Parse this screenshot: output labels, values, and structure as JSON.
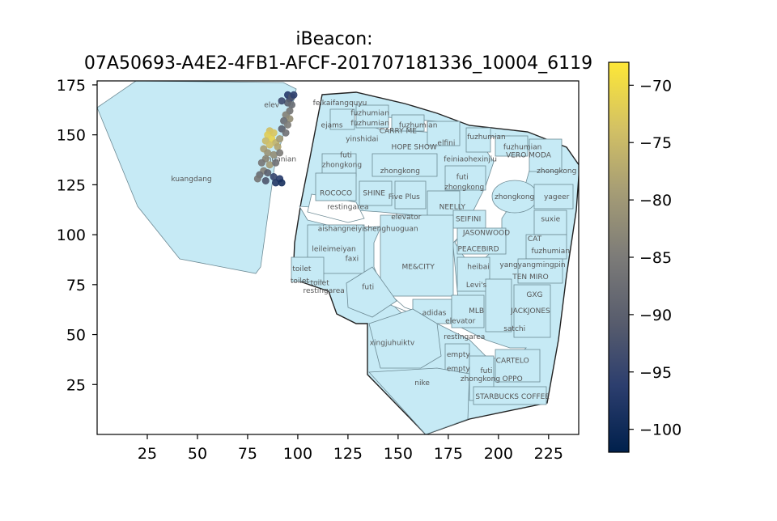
{
  "chart_data": {
    "type": "scatter",
    "title_lines": [
      "iBeacon:",
      "07A50693-A4E2-4FB1-AFCF-201707181336_10004_6119"
    ],
    "xlabel": "",
    "ylabel": "",
    "xlim": [
      0,
      240
    ],
    "ylim": [
      0,
      177
    ],
    "x_ticks": [
      "25",
      "50",
      "75",
      "100",
      "125",
      "150",
      "175",
      "200",
      "225"
    ],
    "y_ticks": [
      "25",
      "50",
      "75",
      "100",
      "125",
      "150",
      "175"
    ],
    "colorbar": {
      "cmap": "cividis",
      "range": [
        -102,
        -68
      ],
      "ticks": [
        "−70",
        "−75",
        "−80",
        "−85",
        "−90",
        "−95",
        "−100"
      ],
      "colors": [
        "#00204c",
        "#2c3e6e",
        "#575c6d",
        "#7c7b78",
        "#a69d75",
        "#d3c164",
        "#fde737"
      ]
    },
    "shop_labels": [
      {
        "text": "kuangdang",
        "x": 47,
        "y": 128
      },
      {
        "text": "elev",
        "x": 87,
        "y": 165
      },
      {
        "text": "zhuanian",
        "x": 91,
        "y": 138
      },
      {
        "text": "feikaifangquyu",
        "x": 121,
        "y": 166
      },
      {
        "text": "fuzhumian",
        "x": 136,
        "y": 161
      },
      {
        "text": "ejams",
        "x": 117,
        "y": 155
      },
      {
        "text": "fuzhumian",
        "x": 136,
        "y": 156
      },
      {
        "text": "CARRY ME",
        "x": 150,
        "y": 152
      },
      {
        "text": "fuzhumian",
        "x": 160,
        "y": 155
      },
      {
        "text": "yinshidai",
        "x": 132,
        "y": 148
      },
      {
        "text": "HOPE SHOW",
        "x": 158,
        "y": 144
      },
      {
        "text": "elfini",
        "x": 174,
        "y": 146
      },
      {
        "text": "fuzhumian",
        "x": 194,
        "y": 149
      },
      {
        "text": "fuzhumian",
        "x": 212,
        "y": 144
      },
      {
        "text": "VERO MODA",
        "x": 215,
        "y": 140
      },
      {
        "text": "feiniaohexinjiu",
        "x": 186,
        "y": 138
      },
      {
        "text": "futi",
        "x": 124,
        "y": 140
      },
      {
        "text": "zhongkong",
        "x": 122,
        "y": 135
      },
      {
        "text": "zhongkong",
        "x": 151,
        "y": 132
      },
      {
        "text": "zhongkong",
        "x": 229,
        "y": 132
      },
      {
        "text": "futi",
        "x": 182,
        "y": 129
      },
      {
        "text": "zhongkong",
        "x": 183,
        "y": 124
      },
      {
        "text": "ROCOCO",
        "x": 119,
        "y": 121
      },
      {
        "text": "SHINE",
        "x": 138,
        "y": 121
      },
      {
        "text": "Five Plus",
        "x": 153,
        "y": 119
      },
      {
        "text": "zhongkong",
        "x": 208,
        "y": 119
      },
      {
        "text": "yageer",
        "x": 229,
        "y": 119
      },
      {
        "text": "restingarea",
        "x": 125,
        "y": 114
      },
      {
        "text": "NEELLY",
        "x": 177,
        "y": 114
      },
      {
        "text": "elevator",
        "x": 154,
        "y": 109
      },
      {
        "text": "SEIFINI",
        "x": 185,
        "y": 108
      },
      {
        "text": "suxie",
        "x": 226,
        "y": 108
      },
      {
        "text": "aishangneiyishenghuoguan",
        "x": 135,
        "y": 103
      },
      {
        "text": "JASONWOOD",
        "x": 194,
        "y": 101
      },
      {
        "text": "CAT",
        "x": 218,
        "y": 98
      },
      {
        "text": "leileimeiyan",
        "x": 118,
        "y": 93
      },
      {
        "text": "PEACEBIRD",
        "x": 190,
        "y": 93
      },
      {
        "text": "fuzhumian",
        "x": 226,
        "y": 92
      },
      {
        "text": "faxi",
        "x": 127,
        "y": 88
      },
      {
        "text": "ME&CITY",
        "x": 160,
        "y": 84
      },
      {
        "text": "heibai",
        "x": 190,
        "y": 84
      },
      {
        "text": "yangyangmingpin",
        "x": 217,
        "y": 85
      },
      {
        "text": "toilet",
        "x": 102,
        "y": 83
      },
      {
        "text": "TEN MIRO",
        "x": 216,
        "y": 79
      },
      {
        "text": "toilet",
        "x": 101,
        "y": 77
      },
      {
        "text": "toilet",
        "x": 111,
        "y": 76
      },
      {
        "text": "Levi's",
        "x": 189,
        "y": 75
      },
      {
        "text": "futi",
        "x": 135,
        "y": 74
      },
      {
        "text": "restingarea",
        "x": 113,
        "y": 72
      },
      {
        "text": "GXG",
        "x": 218,
        "y": 70
      },
      {
        "text": "MLB",
        "x": 189,
        "y": 62
      },
      {
        "text": "JACKJONES",
        "x": 216,
        "y": 62
      },
      {
        "text": "adidas",
        "x": 168,
        "y": 61
      },
      {
        "text": "elevator",
        "x": 181,
        "y": 57
      },
      {
        "text": "satchi",
        "x": 208,
        "y": 53
      },
      {
        "text": "restingarea",
        "x": 183,
        "y": 49
      },
      {
        "text": "xingjuhuiktv",
        "x": 147,
        "y": 46
      },
      {
        "text": "empty",
        "x": 180,
        "y": 40
      },
      {
        "text": "CARTELO",
        "x": 207,
        "y": 37
      },
      {
        "text": "empty",
        "x": 180,
        "y": 33
      },
      {
        "text": "futi",
        "x": 194,
        "y": 32
      },
      {
        "text": "zhongkong",
        "x": 191,
        "y": 28
      },
      {
        "text": "OPPO",
        "x": 207,
        "y": 28
      },
      {
        "text": "nike",
        "x": 162,
        "y": 26
      },
      {
        "text": "STARBUCKS COFFEE",
        "x": 207,
        "y": 19
      }
    ],
    "points": [
      {
        "x": 95,
        "y": 170,
        "v": -97
      },
      {
        "x": 96,
        "y": 168,
        "v": -95
      },
      {
        "x": 97,
        "y": 169,
        "v": -92
      },
      {
        "x": 98,
        "y": 170,
        "v": -96
      },
      {
        "x": 95,
        "y": 166,
        "v": -90
      },
      {
        "x": 97,
        "y": 165,
        "v": -88
      },
      {
        "x": 92,
        "y": 167,
        "v": -94
      },
      {
        "x": 96,
        "y": 162,
        "v": -86
      },
      {
        "x": 94,
        "y": 160,
        "v": -84
      },
      {
        "x": 96,
        "y": 158,
        "v": -82
      },
      {
        "x": 93,
        "y": 157,
        "v": -88
      },
      {
        "x": 95,
        "y": 155,
        "v": -85
      },
      {
        "x": 92,
        "y": 153,
        "v": -90
      },
      {
        "x": 94,
        "y": 151,
        "v": -87
      },
      {
        "x": 86,
        "y": 152,
        "v": -74
      },
      {
        "x": 85,
        "y": 150,
        "v": -72
      },
      {
        "x": 87,
        "y": 148,
        "v": -71
      },
      {
        "x": 88,
        "y": 151,
        "v": -73
      },
      {
        "x": 84,
        "y": 147,
        "v": -75
      },
      {
        "x": 89,
        "y": 146,
        "v": -76
      },
      {
        "x": 86,
        "y": 145,
        "v": -74
      },
      {
        "x": 91,
        "y": 148,
        "v": -80
      },
      {
        "x": 90,
        "y": 144,
        "v": -78
      },
      {
        "x": 83,
        "y": 143,
        "v": -79
      },
      {
        "x": 85,
        "y": 141,
        "v": -81
      },
      {
        "x": 88,
        "y": 140,
        "v": -82
      },
      {
        "x": 91,
        "y": 141,
        "v": -85
      },
      {
        "x": 84,
        "y": 138,
        "v": -83
      },
      {
        "x": 82,
        "y": 136,
        "v": -86
      },
      {
        "x": 86,
        "y": 135,
        "v": -80
      },
      {
        "x": 89,
        "y": 136,
        "v": -87
      },
      {
        "x": 83,
        "y": 132,
        "v": -84
      },
      {
        "x": 81,
        "y": 130,
        "v": -88
      },
      {
        "x": 85,
        "y": 131,
        "v": -90
      },
      {
        "x": 80,
        "y": 128,
        "v": -86
      },
      {
        "x": 84,
        "y": 127,
        "v": -92
      },
      {
        "x": 88,
        "y": 129,
        "v": -95
      },
      {
        "x": 91,
        "y": 128,
        "v": -97
      },
      {
        "x": 89,
        "y": 126,
        "v": -98
      },
      {
        "x": 92,
        "y": 126,
        "v": -99
      }
    ]
  }
}
